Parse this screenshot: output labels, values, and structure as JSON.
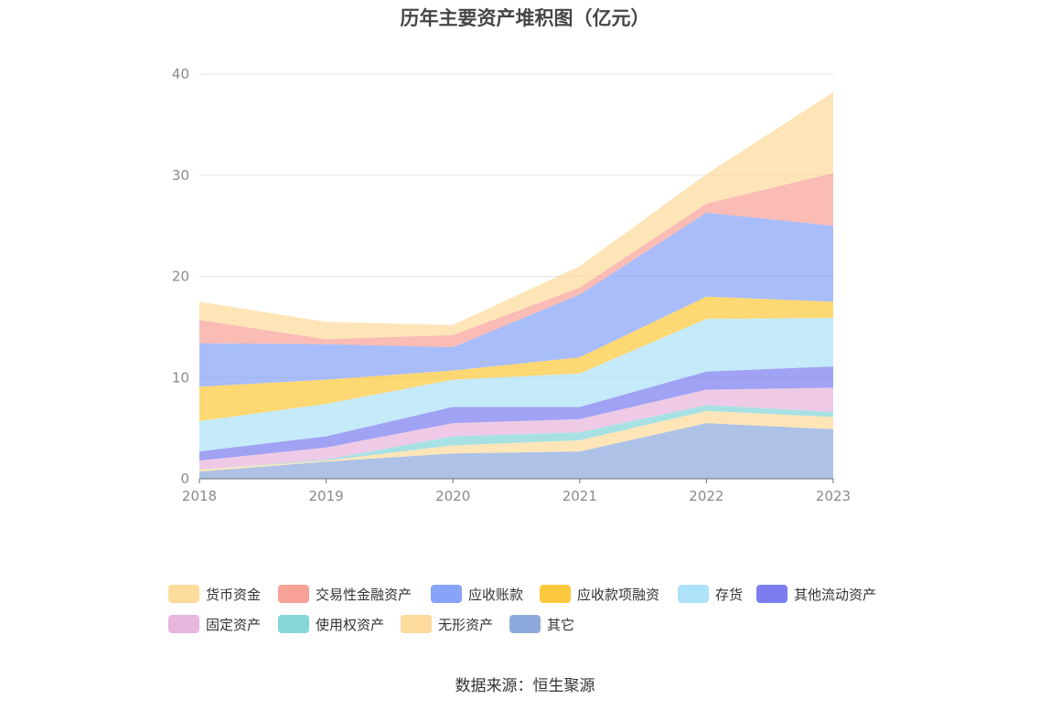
{
  "chart_data": {
    "type": "area",
    "stacked": true,
    "title": "历年主要资产堆积图（亿元）",
    "xlabel": "",
    "ylabel": "",
    "ylim": [
      0,
      40
    ],
    "yticks": [
      0,
      10,
      20,
      30,
      40
    ],
    "grid": true,
    "legend_position": "bottom",
    "categories": [
      "2018",
      "2019",
      "2020",
      "2021",
      "2022",
      "2023"
    ],
    "series": [
      {
        "name": "其它",
        "color": "#8eaadc",
        "values": [
          0.7,
          1.7,
          2.5,
          2.7,
          5.5,
          4.9
        ]
      },
      {
        "name": "无形资产",
        "color": "#fddb9c",
        "values": [
          0.2,
          0.1,
          0.8,
          1.1,
          1.2,
          1.2
        ]
      },
      {
        "name": "使用权资产",
        "color": "#86d5d8",
        "values": [
          0.0,
          0.1,
          0.9,
          0.8,
          0.6,
          0.5
        ]
      },
      {
        "name": "固定资产",
        "color": "#e8b6dd",
        "values": [
          0.9,
          1.2,
          1.3,
          1.3,
          1.5,
          2.4
        ]
      },
      {
        "name": "其他流动资产",
        "color": "#7c7ef0",
        "values": [
          0.9,
          1.1,
          1.6,
          1.2,
          1.8,
          2.1
        ]
      },
      {
        "name": "存货",
        "color": "#aee2f8",
        "values": [
          3.0,
          3.2,
          2.7,
          3.3,
          5.2,
          4.8
        ]
      },
      {
        "name": "应收款项融资",
        "color": "#fdc93c",
        "values": [
          3.4,
          2.4,
          0.9,
          1.6,
          2.2,
          1.6
        ]
      },
      {
        "name": "应收账款",
        "color": "#88a4f8",
        "values": [
          4.3,
          3.5,
          2.3,
          6.2,
          8.3,
          7.5
        ]
      },
      {
        "name": "交易性金融资产",
        "color": "#f8a297",
        "values": [
          2.3,
          0.5,
          1.2,
          0.7,
          0.9,
          5.2
        ]
      },
      {
        "name": "货币资金",
        "color": "#fddb9c",
        "values": [
          1.8,
          1.7,
          1.0,
          2.1,
          2.9,
          8.0
        ]
      }
    ]
  },
  "legend": [
    {
      "label": "货币资金",
      "color": "#fddb9c"
    },
    {
      "label": "交易性金融资产",
      "color": "#f8a297"
    },
    {
      "label": "应收账款",
      "color": "#88a4f8"
    },
    {
      "label": "应收款项融资",
      "color": "#fdc93c"
    },
    {
      "label": "存货",
      "color": "#aee2f8"
    },
    {
      "label": "其他流动资产",
      "color": "#7c7ef0"
    },
    {
      "label": "固定资产",
      "color": "#e8b6dd"
    },
    {
      "label": "使用权资产",
      "color": "#86d5d8"
    },
    {
      "label": "无形资产",
      "color": "#fddb9c"
    },
    {
      "label": "其它",
      "color": "#8eaadc"
    }
  ],
  "source": "数据来源：恒生聚源"
}
